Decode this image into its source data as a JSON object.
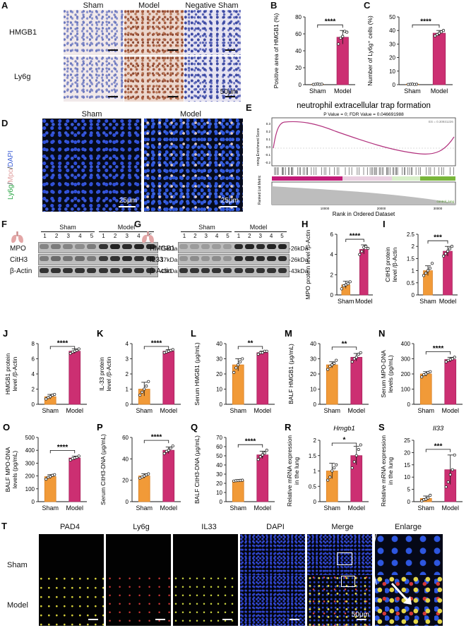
{
  "panels": {
    "A": {
      "letter": "A",
      "cols": [
        "Sham",
        "Model",
        "Negative Sham"
      ],
      "rows": [
        "HMGB1",
        "Ly6g"
      ],
      "scale": "50μm"
    },
    "B": {
      "letter": "B"
    },
    "C": {
      "letter": "C"
    },
    "D": {
      "letter": "D",
      "cols": [
        "Sham",
        "Model"
      ],
      "stain": {
        "ly6g": "Ly6g",
        "mpo": "Mpo",
        "dapi": "DAPI"
      },
      "scale": "25μm"
    },
    "E": {
      "letter": "E",
      "title": "neutrophil extracellular trap formation",
      "subtitle": "P Value = 0; FDR Value = 0.046691988",
      "ylabel_top": "nning Enrichment Score",
      "ylabel_bottom": "Ranked List Metric",
      "xlabel": "Rank in Ordered Dataset",
      "es_text": "ES = 0.30931226",
      "left_group": "SP_AKI_lung",
      "right_group": "control_lung",
      "xticks": [
        "10000",
        "20000",
        "30000"
      ],
      "yticks": [
        "0.3",
        "0.2",
        "0.1",
        "0.0",
        "-0.1",
        "-0.2"
      ]
    },
    "F": {
      "letter": "F",
      "header": {
        "sham": "Sham",
        "model": "Model"
      },
      "lanes": [
        "1",
        "2",
        "3",
        "4",
        "5",
        "1",
        "2",
        "3",
        "4",
        "5"
      ],
      "rows": [
        {
          "name": "MPO",
          "kda": "-75kDa"
        },
        {
          "name": "CitH3",
          "kda": "-17kDa"
        },
        {
          "name": "β-Actin",
          "kda": "-43kDa"
        }
      ]
    },
    "G": {
      "letter": "G",
      "header": {
        "sham": "Sham",
        "model": "Model"
      },
      "lanes": [
        "1",
        "2",
        "3",
        "4",
        "5",
        "1",
        "2",
        "3",
        "4",
        "5"
      ],
      "rows": [
        {
          "name": "HMGB1",
          "kda": "-26kDa"
        },
        {
          "name": "IL33",
          "kda": "-26kDa"
        },
        {
          "name": "β-Actin",
          "kda": "-43kDa"
        }
      ]
    },
    "T": {
      "letter": "T",
      "cols": [
        "PAD4",
        "Ly6g",
        "IL33",
        "DAPI",
        "Merge",
        "Enlarge"
      ],
      "rows": [
        "Sham",
        "Model"
      ],
      "scale": "50μm"
    }
  },
  "colors": {
    "sham": "#f19a38",
    "model": "#cc2f72",
    "sham_dark": "#d98226",
    "model_dark": "#a8235c"
  },
  "chart_data": [
    {
      "id": "B",
      "letter": "B",
      "type": "bar",
      "categories": [
        "Sham",
        "Model"
      ],
      "values": [
        0.5,
        56
      ],
      "errors": [
        0.5,
        8
      ],
      "ylabel": "Positive area of HMGB1 (%)",
      "ylim": [
        0,
        80
      ],
      "yticks": [
        0,
        20,
        40,
        60,
        80
      ],
      "sig": "****",
      "points": [
        [
          0.3,
          0.5,
          0.8,
          0.4,
          0.6
        ],
        [
          48,
          55,
          57,
          63,
          62
        ]
      ]
    },
    {
      "id": "C",
      "letter": "C",
      "type": "bar",
      "categories": [
        "Sham",
        "Model"
      ],
      "values": [
        0.3,
        38
      ],
      "errors": [
        0.3,
        2
      ],
      "ylabel": "Number of Ly6g⁺ cells (%)",
      "ylim": [
        0,
        50
      ],
      "yticks": [
        0,
        10,
        20,
        30,
        40,
        50
      ],
      "sig": "****",
      "points": [
        [
          0.2,
          0.3,
          0.4,
          0.2,
          0.3
        ],
        [
          36,
          37,
          38,
          39,
          40
        ]
      ]
    },
    {
      "id": "H",
      "letter": "H",
      "type": "bar",
      "categories": [
        "Sham",
        "Model"
      ],
      "values": [
        1.0,
        4.5
      ],
      "errors": [
        0.35,
        0.45
      ],
      "ylabel": "MPO protein level /β-Actin",
      "ylim": [
        0,
        6
      ],
      "yticks": [
        0,
        2,
        4,
        6
      ],
      "sig": "****",
      "points": [
        [
          0.6,
          0.9,
          1.0,
          1.1,
          1.3
        ],
        [
          4.0,
          4.3,
          4.7,
          4.8,
          4.6
        ]
      ]
    },
    {
      "id": "I",
      "letter": "I",
      "type": "bar",
      "categories": [
        "Sham",
        "Model"
      ],
      "values": [
        1.0,
        1.8
      ],
      "errors": [
        0.2,
        0.2
      ],
      "ylabel": "CitH3 protein level /β-Actin",
      "ylim": [
        0,
        2.5
      ],
      "yticks": [
        0.0,
        0.5,
        1.0,
        1.5,
        2.0,
        2.5
      ],
      "sig": "***",
      "points": [
        [
          0.8,
          0.9,
          1.0,
          1.1,
          1.3
        ],
        [
          1.6,
          1.7,
          1.8,
          1.9,
          2.0
        ]
      ]
    },
    {
      "id": "J",
      "letter": "J",
      "type": "bar",
      "categories": [
        "Sham",
        "Model"
      ],
      "values": [
        1.0,
        7.0
      ],
      "errors": [
        0.3,
        0.3
      ],
      "ylabel": "HMGB1 protein level /β-Actin",
      "ylim": [
        0,
        8
      ],
      "yticks": [
        0,
        2,
        4,
        6,
        8
      ],
      "sig": "****",
      "points": [
        [
          0.7,
          0.9,
          1.0,
          1.2,
          1.3
        ],
        [
          6.7,
          6.9,
          7.0,
          7.1,
          7.3
        ]
      ]
    },
    {
      "id": "K",
      "letter": "K",
      "type": "bar",
      "categories": [
        "Sham",
        "Model"
      ],
      "values": [
        1.0,
        3.5
      ],
      "errors": [
        0.45,
        0.1
      ],
      "ylabel": "IL-33 protein level /β-Actin",
      "ylim": [
        0,
        4
      ],
      "yticks": [
        0,
        1,
        2,
        3,
        4
      ],
      "sig": "****",
      "points": [
        [
          0.6,
          0.8,
          1.0,
          1.2,
          1.5
        ],
        [
          3.4,
          3.45,
          3.5,
          3.55,
          3.6
        ]
      ]
    },
    {
      "id": "L",
      "letter": "L",
      "type": "bar",
      "categories": [
        "Sham",
        "Model"
      ],
      "values": [
        26,
        34
      ],
      "errors": [
        4,
        1
      ],
      "ylabel": "Serum HMGB1 (μg/mL)",
      "ylim": [
        0,
        40
      ],
      "yticks": [
        0,
        10,
        20,
        30,
        40
      ],
      "sig": "**",
      "points": [
        [
          21,
          24,
          26,
          28,
          30
        ],
        [
          33,
          34,
          34,
          35,
          35
        ]
      ]
    },
    {
      "id": "M",
      "letter": "M",
      "type": "bar",
      "categories": [
        "Sham",
        "Model"
      ],
      "values": [
        26,
        31
      ],
      "errors": [
        2,
        2.5
      ],
      "ylabel": "BALF HMGB1 (μg/mL)",
      "ylim": [
        0,
        40
      ],
      "yticks": [
        0,
        10,
        20,
        30,
        40
      ],
      "sig": "**",
      "points": [
        [
          23,
          25,
          26,
          27,
          29
        ],
        [
          28,
          30,
          31,
          33,
          34
        ]
      ]
    },
    {
      "id": "N",
      "letter": "N",
      "type": "bar",
      "categories": [
        "Sham",
        "Model"
      ],
      "values": [
        200,
        295
      ],
      "errors": [
        15,
        15
      ],
      "ylabel": "Serum MPO-DNA levels (pg/mL)",
      "ylim": [
        0,
        400
      ],
      "yticks": [
        0,
        100,
        200,
        300,
        400
      ],
      "sig": "****",
      "points": [
        [
          180,
          195,
          200,
          210,
          215
        ],
        [
          280,
          290,
          295,
          300,
          310
        ]
      ]
    },
    {
      "id": "O",
      "letter": "O",
      "type": "bar",
      "categories": [
        "Sham",
        "Model"
      ],
      "values": [
        195,
        340
      ],
      "errors": [
        15,
        15
      ],
      "ylabel": "BALF MPO-DNA levels (pg/mL)",
      "ylim": [
        0,
        500
      ],
      "yticks": [
        0,
        100,
        200,
        300,
        400,
        500
      ],
      "sig": "****",
      "points": [
        [
          175,
          190,
          195,
          205,
          210
        ],
        [
          325,
          335,
          340,
          345,
          355
        ]
      ]
    },
    {
      "id": "P",
      "letter": "P",
      "type": "bar",
      "categories": [
        "Sham",
        "Model"
      ],
      "values": [
        24,
        48
      ],
      "errors": [
        2,
        3
      ],
      "ylabel": "Serum CitH3-DNA (μg/mL)",
      "ylim": [
        0,
        60
      ],
      "yticks": [
        0,
        20,
        40,
        60
      ],
      "sig": "****",
      "points": [
        [
          22,
          23,
          24,
          25,
          26
        ],
        [
          45,
          47,
          48,
          50,
          52
        ]
      ]
    },
    {
      "id": "Q",
      "letter": "Q",
      "type": "bar",
      "categories": [
        "Sham",
        "Model"
      ],
      "values": [
        23,
        51
      ],
      "errors": [
        0.5,
        4
      ],
      "ylabel": "BALF CitH3-DNA (μg/mL)",
      "ylim": [
        0,
        70
      ],
      "yticks": [
        0,
        10,
        20,
        30,
        40,
        50,
        60,
        70
      ],
      "sig": "****",
      "points": [
        [
          22.5,
          22.8,
          23,
          23.2,
          23.4
        ],
        [
          46,
          49,
          51,
          53,
          56
        ]
      ]
    },
    {
      "id": "R",
      "letter": "R",
      "type": "bar",
      "title": "Hmgb1",
      "categories": [
        "Sham",
        "Model"
      ],
      "values": [
        1.0,
        1.5
      ],
      "errors": [
        0.25,
        0.3
      ],
      "ylabel": "Relative mRNA expression in the lung",
      "ylim": [
        0,
        2.0
      ],
      "yticks": [
        0.0,
        0.5,
        1.0,
        1.5,
        2.0
      ],
      "sig": "*",
      "points": [
        [
          0.7,
          0.8,
          1.0,
          1.1,
          1.2
        ],
        [
          1.1,
          1.3,
          1.5,
          1.7,
          1.85
        ]
      ]
    },
    {
      "id": "S",
      "letter": "S",
      "type": "bar",
      "title": "Il33",
      "categories": [
        "Sham",
        "Model"
      ],
      "values": [
        1.3,
        13
      ],
      "errors": [
        1,
        6
      ],
      "ylabel": "Relative mRNA expression in the lung",
      "ylim": [
        0,
        25
      ],
      "yticks": [
        0,
        5,
        10,
        15,
        20,
        25
      ],
      "sig": "***",
      "points": [
        [
          0.3,
          0.8,
          1.0,
          1.5,
          2.6
        ],
        [
          6,
          8,
          11,
          13,
          19
        ]
      ]
    }
  ]
}
